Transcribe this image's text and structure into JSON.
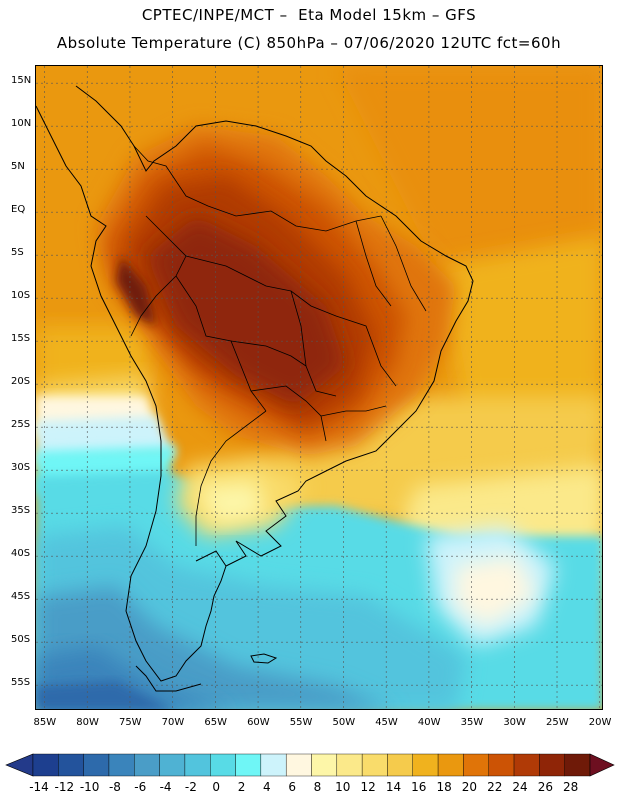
{
  "header": {
    "title_line1": "CPTEC/INPE/MCT –  Eta Model 15km – GFS",
    "title_line2": "Absolute Temperature (C) 850hPa – 07/06/2020 12UTC fct=60h"
  },
  "map": {
    "extent": {
      "lon_min": -86,
      "lon_max": -19.5,
      "lat_min": -58,
      "lat_max": 17
    },
    "gridlines": "dotted",
    "lat_labels": [
      {
        "text": "15N",
        "lat": 15
      },
      {
        "text": "10N",
        "lat": 10
      },
      {
        "text": "5N",
        "lat": 5
      },
      {
        "text": "EQ",
        "lat": 0
      },
      {
        "text": "5S",
        "lat": -5
      },
      {
        "text": "10S",
        "lat": -10
      },
      {
        "text": "15S",
        "lat": -15
      },
      {
        "text": "20S",
        "lat": -20
      },
      {
        "text": "25S",
        "lat": -25
      },
      {
        "text": "30S",
        "lat": -30
      },
      {
        "text": "35S",
        "lat": -35
      },
      {
        "text": "40S",
        "lat": -40
      },
      {
        "text": "45S",
        "lat": -45
      },
      {
        "text": "50S",
        "lat": -50
      },
      {
        "text": "55S",
        "lat": -55
      }
    ],
    "lon_labels": [
      {
        "text": "85W",
        "lon": -85
      },
      {
        "text": "80W",
        "lon": -80
      },
      {
        "text": "75W",
        "lon": -75
      },
      {
        "text": "70W",
        "lon": -70
      },
      {
        "text": "65W",
        "lon": -65
      },
      {
        "text": "60W",
        "lon": -60
      },
      {
        "text": "55W",
        "lon": -55
      },
      {
        "text": "50W",
        "lon": -50
      },
      {
        "text": "45W",
        "lon": -45
      },
      {
        "text": "40W",
        "lon": -40
      },
      {
        "text": "35W",
        "lon": -35
      },
      {
        "text": "30W",
        "lon": -30
      },
      {
        "text": "25W",
        "lon": -25
      },
      {
        "text": "20W",
        "lon": -20
      }
    ]
  },
  "colorbar": {
    "labels": [
      "-14",
      "-12",
      "-10",
      "-8",
      "-6",
      "-4",
      "-2",
      "0",
      "2",
      "4",
      "6",
      "8",
      "10",
      "12",
      "14",
      "16",
      "18",
      "20",
      "22",
      "24",
      "26",
      "28"
    ],
    "colors": [
      "#1d3f8f",
      "#23539c",
      "#2d6aab",
      "#3a84bb",
      "#4a9dc7",
      "#4fb2d3",
      "#52c4dd",
      "#58dbe6",
      "#6ff6f6",
      "#cdf3fb",
      "#fff7e0",
      "#fdf6a8",
      "#fbe98a",
      "#f9dc6b",
      "#f5cb4c",
      "#f0b21e",
      "#ea980f",
      "#e07408",
      "#cc5305",
      "#b03a06",
      "#8f2507",
      "#6f1a08"
    ],
    "low_color": "#233a8a",
    "high_color": "#6d0f20"
  }
}
